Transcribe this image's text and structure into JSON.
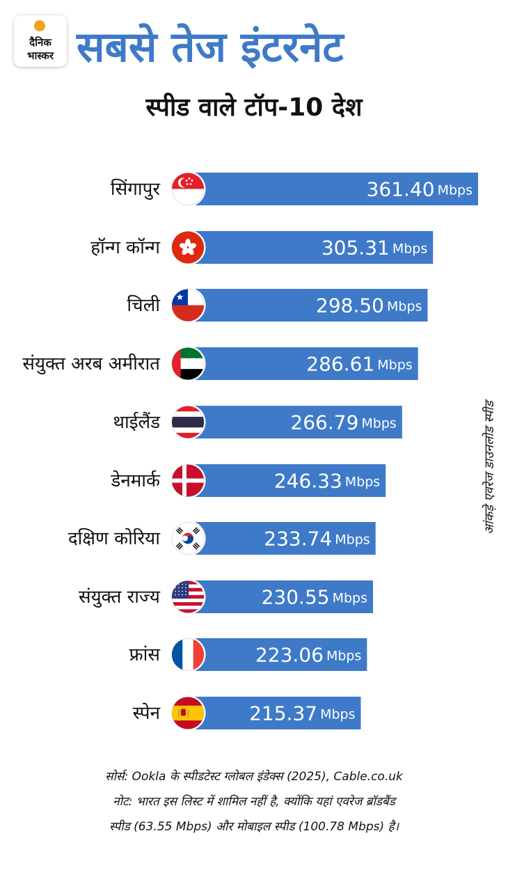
{
  "brand": {
    "line1": "दैनिक",
    "line2": "भास्कर",
    "accent": "#f5a21b"
  },
  "header": {
    "title": "सबसे तेज इंटरनेट",
    "subtitle": "स्पीड वाले टॉप-10 देश"
  },
  "chart_data": {
    "type": "bar",
    "orientation": "horizontal",
    "unit": "Mbps",
    "bar_color": "#3e7ac8",
    "categories": [
      "सिंगापुर",
      "हॉन्ग कॉन्ग",
      "चिली",
      "संयुक्त अरब अमीरात",
      "थाईलैंड",
      "डेनमार्क",
      "दक्षिण कोरिया",
      "संयुक्त राज्य",
      "फ्रांस",
      "स्पेन"
    ],
    "values": [
      361.4,
      305.31,
      298.5,
      286.61,
      266.79,
      246.33,
      233.74,
      230.55,
      223.06,
      215.37
    ],
    "value_labels": [
      "361.40",
      "305.31",
      "298.50",
      "286.61",
      "266.79",
      "246.33",
      "233.74",
      "230.55",
      "223.06",
      "215.37"
    ],
    "flag_icons": [
      "singapore-flag-icon",
      "hong-kong-flag-icon",
      "chile-flag-icon",
      "uae-flag-icon",
      "thailand-flag-icon",
      "denmark-flag-icon",
      "south-korea-flag-icon",
      "usa-flag-icon",
      "france-flag-icon",
      "spain-flag-icon"
    ],
    "axis_note": "आंकड़े एवरेज डाउनलोड स्पीड"
  },
  "footer": {
    "line1": "सोर्स: Ookla के स्पीडटेस्ट ग्लोबल इंडेक्स (2025), Cable.co.uk",
    "line2": "नोट: भारत इस लिस्ट में शामिल नहीं है, क्योंकि यहां एवरेज ब्रॉडबैंड",
    "line3": "स्पीड (63.55 Mbps) और मोबाइल स्पीड (100.78 Mbps) है।"
  }
}
